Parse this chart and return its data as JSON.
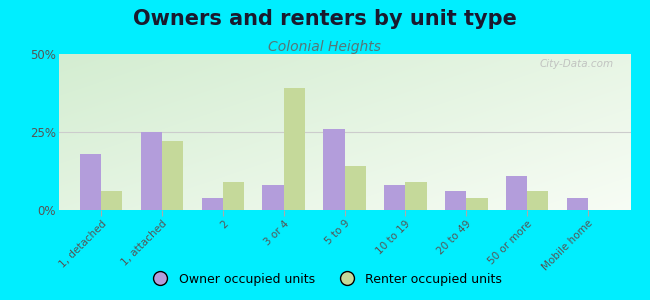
{
  "title": "Owners and renters by unit type",
  "subtitle": "Colonial Heights",
  "categories": [
    "1, detached",
    "1, attached",
    "2",
    "3 or 4",
    "5 to 9",
    "10 to 19",
    "20 to 49",
    "50 or more",
    "Mobile home"
  ],
  "owner_values": [
    18,
    25,
    4,
    8,
    26,
    8,
    6,
    11,
    4
  ],
  "renter_values": [
    6,
    22,
    9,
    39,
    14,
    9,
    4,
    6,
    0
  ],
  "owner_color": "#b39ddb",
  "renter_color": "#c5d99a",
  "outer_bg": "#00eeff",
  "ylim": [
    0,
    50
  ],
  "yticks": [
    0,
    25,
    50
  ],
  "ytick_labels": [
    "0%",
    "25%",
    "50%"
  ],
  "bar_width": 0.35,
  "legend_owner": "Owner occupied units",
  "legend_renter": "Renter occupied units",
  "title_fontsize": 15,
  "subtitle_fontsize": 10,
  "watermark": "City-Data.com",
  "hline_y": 25,
  "hline_color": "#cccccc"
}
